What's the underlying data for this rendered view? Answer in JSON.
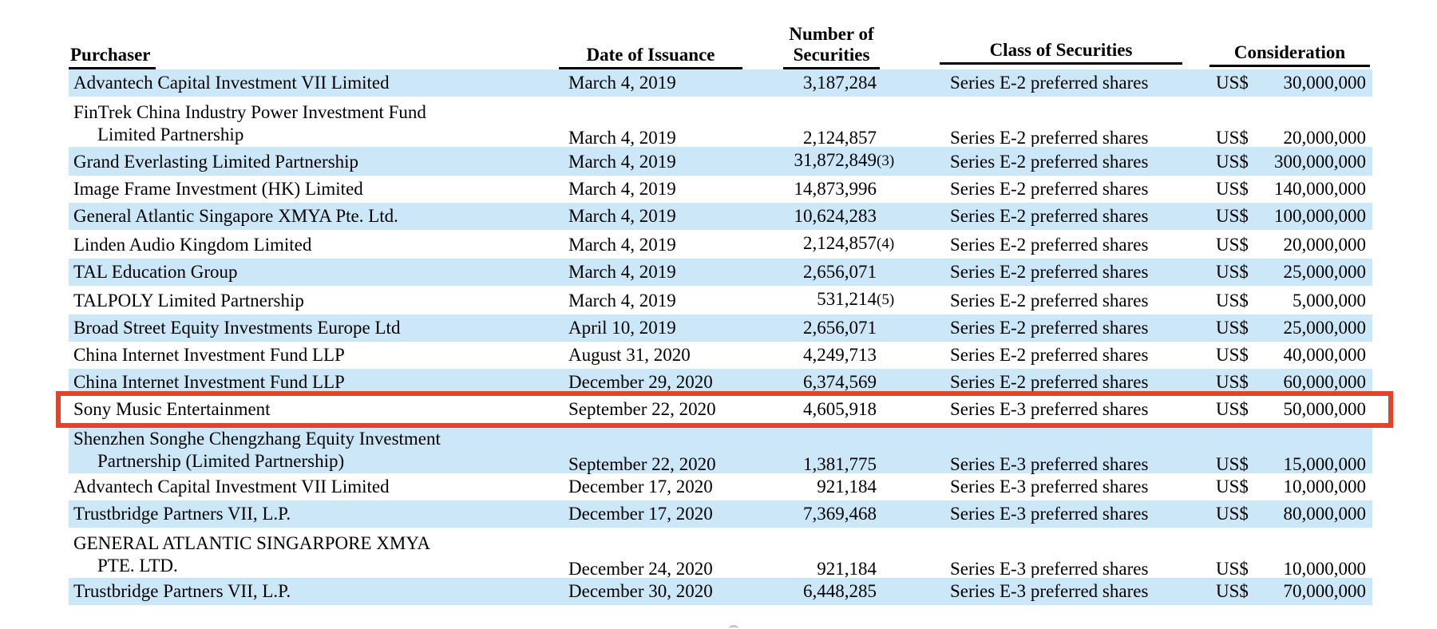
{
  "colors": {
    "stripe": "#cce7f8",
    "highlight_box": "#e0452c",
    "rule": "#000000",
    "text": "#000000"
  },
  "header": {
    "purchaser": "Purchaser",
    "date": "Date of Issuance",
    "number_line1": "Number of",
    "number_line2": "Securities",
    "class": "Class of Securities",
    "consideration": "Consideration"
  },
  "rows": [
    {
      "purchaser1": "Advantech Capital Investment VII Limited",
      "purchaser2": "",
      "date": "March 4, 2019",
      "number": "3,187,284",
      "footnote": "",
      "class": "Series E-2 preferred shares",
      "currency": "US$",
      "amount": "30,000,000",
      "shaded": true,
      "boxed": false
    },
    {
      "purchaser1": "FinTrek China Industry Power Investment Fund",
      "purchaser2": "Limited Partnership",
      "date": "March 4, 2019",
      "number": "2,124,857",
      "footnote": "",
      "class": "Series E-2 preferred shares",
      "currency": "US$",
      "amount": "20,000,000",
      "shaded": false,
      "boxed": false
    },
    {
      "purchaser1": "Grand Everlasting Limited Partnership",
      "purchaser2": "",
      "date": "March 4, 2019",
      "number": "31,872,849",
      "footnote": "(3)",
      "class": "Series E-2 preferred shares",
      "currency": "US$",
      "amount": "300,000,000",
      "shaded": true,
      "boxed": false
    },
    {
      "purchaser1": "Image Frame Investment (HK) Limited",
      "purchaser2": "",
      "date": "March 4, 2019",
      "number": "14,873,996",
      "footnote": "",
      "class": "Series E-2 preferred shares",
      "currency": "US$",
      "amount": "140,000,000",
      "shaded": false,
      "boxed": false
    },
    {
      "purchaser1": "General Atlantic Singapore XMYA Pte. Ltd.",
      "purchaser2": "",
      "date": "March 4, 2019",
      "number": "10,624,283",
      "footnote": "",
      "class": "Series E-2 preferred shares",
      "currency": "US$",
      "amount": "100,000,000",
      "shaded": true,
      "boxed": false
    },
    {
      "purchaser1": "Linden Audio Kingdom Limited",
      "purchaser2": "",
      "date": "March 4, 2019",
      "number": "2,124,857",
      "footnote": "(4)",
      "class": "Series E-2 preferred shares",
      "currency": "US$",
      "amount": "20,000,000",
      "shaded": false,
      "boxed": false
    },
    {
      "purchaser1": "TAL Education Group",
      "purchaser2": "",
      "date": "March 4, 2019",
      "number": "2,656,071",
      "footnote": "",
      "class": "Series E-2 preferred shares",
      "currency": "US$",
      "amount": "25,000,000",
      "shaded": true,
      "boxed": false
    },
    {
      "purchaser1": "TALPOLY Limited Partnership",
      "purchaser2": "",
      "date": "March 4, 2019",
      "number": "531,214",
      "footnote": "(5)",
      "class": "Series E-2 preferred shares",
      "currency": "US$",
      "amount": "5,000,000",
      "shaded": false,
      "boxed": false
    },
    {
      "purchaser1": "Broad Street Equity Investments Europe Ltd",
      "purchaser2": "",
      "date": "April 10, 2019",
      "number": "2,656,071",
      "footnote": "",
      "class": "Series E-2 preferred shares",
      "currency": "US$",
      "amount": "25,000,000",
      "shaded": true,
      "boxed": false
    },
    {
      "purchaser1": "China Internet Investment Fund LLP",
      "purchaser2": "",
      "date": "August 31, 2020",
      "number": "4,249,713",
      "footnote": "",
      "class": "Series E-2 preferred shares",
      "currency": "US$",
      "amount": "40,000,000",
      "shaded": false,
      "boxed": false
    },
    {
      "purchaser1": "China Internet Investment Fund LLP",
      "purchaser2": "",
      "date": "December 29, 2020",
      "number": "6,374,569",
      "footnote": "",
      "class": "Series E-2 preferred shares",
      "currency": "US$",
      "amount": "60,000,000",
      "shaded": true,
      "boxed": false
    },
    {
      "purchaser1": "Sony Music Entertainment",
      "purchaser2": "",
      "date": "September 22, 2020",
      "number": "4,605,918",
      "footnote": "",
      "class": "Series E-3 preferred shares",
      "currency": "US$",
      "amount": "50,000,000",
      "shaded": false,
      "boxed": true
    },
    {
      "purchaser1": "Shenzhen Songhe Chengzhang Equity Investment",
      "purchaser2": "Partnership (Limited Partnership)",
      "date": "September 22, 2020",
      "number": "1,381,775",
      "footnote": "",
      "class": "Series E-3 preferred shares",
      "currency": "US$",
      "amount": "15,000,000",
      "shaded": true,
      "boxed": false
    },
    {
      "purchaser1": "Advantech Capital Investment VII Limited",
      "purchaser2": "",
      "date": "December 17, 2020",
      "number": "921,184",
      "footnote": "",
      "class": "Series E-3 preferred shares",
      "currency": "US$",
      "amount": "10,000,000",
      "shaded": false,
      "boxed": false
    },
    {
      "purchaser1": "Trustbridge Partners VII, L.P.",
      "purchaser2": "",
      "date": "December 17, 2020",
      "number": "7,369,468",
      "footnote": "",
      "class": "Series E-3 preferred shares",
      "currency": "US$",
      "amount": "80,000,000",
      "shaded": true,
      "boxed": false
    },
    {
      "purchaser1": "GENERAL ATLANTIC SINGARPORE XMYA",
      "purchaser2": "PTE. LTD.",
      "date": "December 24, 2020",
      "number": "921,184",
      "footnote": "",
      "class": "Series E-3 preferred shares",
      "currency": "US$",
      "amount": "10,000,000",
      "shaded": false,
      "boxed": false
    },
    {
      "purchaser1": "Trustbridge Partners VII, L.P.",
      "purchaser2": "",
      "date": "December 30, 2020",
      "number": "6,448,285",
      "footnote": "",
      "class": "Series E-3 preferred shares",
      "currency": "US$",
      "amount": "70,000,000",
      "shaded": true,
      "boxed": false
    }
  ]
}
